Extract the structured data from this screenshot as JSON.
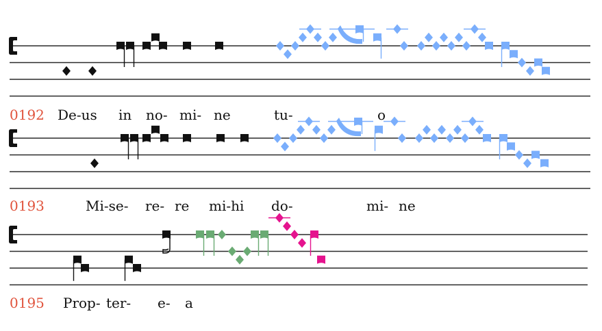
{
  "colors": {
    "ink": "#111111",
    "staff": "#2a2a2a",
    "line_number": "#e0533c",
    "blue": "#7aaefc",
    "green": "#6aab73",
    "magenta": "#e5138e"
  },
  "clef": "c-clef-icon",
  "systems": [
    {
      "number": "0192",
      "syllables": [
        "De-us",
        "in",
        "no-",
        "mi-",
        "ne",
        "tu-",
        "o"
      ]
    },
    {
      "number": "0193",
      "syllables": [
        "Mi-se-",
        "re-",
        "re",
        "mi-hi",
        "do-",
        "mi-",
        "ne"
      ]
    },
    {
      "number": "0195",
      "syllables": [
        "Prop-",
        "ter-",
        "e-",
        "a"
      ]
    }
  ]
}
